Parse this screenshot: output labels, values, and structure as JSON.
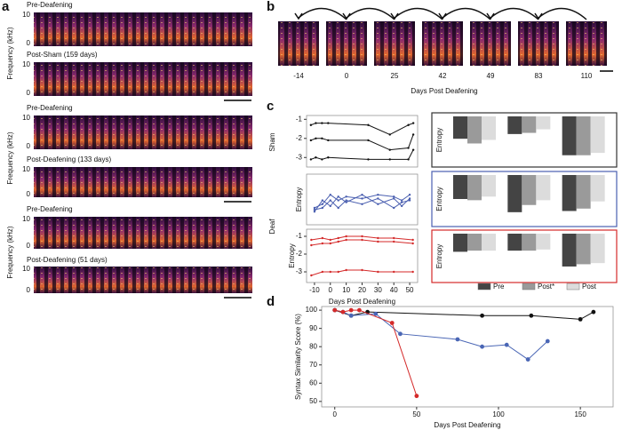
{
  "panel_labels": [
    "a",
    "b",
    "c",
    "d"
  ],
  "panel_a": {
    "ylabel": "Frequency (kHz)",
    "yticks": [
      0,
      10
    ],
    "rows": [
      {
        "title": "Pre-Deafening",
        "color": "#111111"
      },
      {
        "title": "Post-Sham (159 days)",
        "color": "#111111"
      },
      {
        "title": "Pre-Deafening",
        "color": "#4a5fb0"
      },
      {
        "title": "Post-Deafening (133 days)",
        "color": "#4a5fb0"
      },
      {
        "title": "Pre-Deafening",
        "color": "#d42a2a"
      },
      {
        "title": "Post-Deafening (51 days)",
        "color": "#d42a2a"
      }
    ]
  },
  "panel_b": {
    "days": [
      -14,
      0,
      25,
      42,
      49,
      83,
      110
    ],
    "xlabel": "Days Post Deafening"
  },
  "panel_c": {
    "row_labels": [
      "Sham",
      "Deaf"
    ],
    "legend": [
      {
        "name": "Pre",
        "color": "#444444"
      },
      {
        "name": "Post*",
        "color": "#9a9a9a"
      },
      {
        "name": "Post",
        "color": "#dcdcdc"
      }
    ]
  },
  "chart_data": [
    {
      "type": "line",
      "xlim": [
        -15,
        165
      ],
      "ylim": [
        -3.5,
        -0.8
      ],
      "yticks": [
        -1,
        -2,
        -3
      ],
      "x": [
        -8,
        0,
        10,
        20,
        85,
        120,
        150,
        158
      ],
      "series": [
        {
          "color": "#111111",
          "values": [
            -1.3,
            -1.2,
            -1.2,
            -1.2,
            -1.3,
            -1.8,
            -1.3,
            -1.2
          ]
        },
        {
          "color": "#111111",
          "values": [
            -2.1,
            -2.0,
            -2.0,
            -2.1,
            -2.1,
            -2.6,
            -2.5,
            -1.8
          ]
        },
        {
          "color": "#111111",
          "values": [
            -3.1,
            -3.0,
            -3.1,
            -3.0,
            -3.1,
            -3.1,
            -3.1,
            -2.6
          ]
        }
      ]
    },
    {
      "type": "line",
      "ylabel": "Entropy",
      "xlim": [
        -15,
        55
      ],
      "ylim": [
        -3.5,
        -0.8
      ],
      "x": [
        -10,
        -5,
        0,
        5,
        10,
        20,
        30,
        40,
        45,
        50
      ],
      "series": [
        {
          "color": "#4a5fb0",
          "values": [
            -2.6,
            -2.4,
            -1.9,
            -2.2,
            -2.0,
            -2.1,
            -1.9,
            -2.0,
            -2.2,
            -1.9
          ]
        },
        {
          "color": "#4a5fb0",
          "values": [
            -2.8,
            -2.2,
            -2.5,
            -2.0,
            -2.3,
            -1.9,
            -2.4,
            -2.1,
            -2.5,
            -2.1
          ]
        },
        {
          "color": "#4a5fb0",
          "values": [
            -2.7,
            -2.6,
            -2.2,
            -2.6,
            -2.2,
            -2.4,
            -2.1,
            -2.6,
            -2.3,
            -2.2
          ]
        }
      ]
    },
    {
      "type": "line",
      "ylabel": "Entropy",
      "xlabel": "Days Post Deafening",
      "xlim": [
        -15,
        55
      ],
      "ylim": [
        -3.6,
        -0.6
      ],
      "yticks": [
        -1,
        -2,
        -3
      ],
      "xticks": [
        -10,
        0,
        10,
        20,
        30,
        40,
        50
      ],
      "x": [
        -12,
        -5,
        0,
        5,
        10,
        20,
        30,
        40,
        52
      ],
      "series": [
        {
          "color": "#d42a2a",
          "values": [
            -1.2,
            -1.1,
            -1.2,
            -1.1,
            -1.0,
            -1.0,
            -1.1,
            -1.1,
            -1.2
          ]
        },
        {
          "color": "#d42a2a",
          "values": [
            -1.5,
            -1.4,
            -1.4,
            -1.3,
            -1.2,
            -1.2,
            -1.3,
            -1.3,
            -1.4
          ]
        },
        {
          "color": "#d42a2a",
          "values": [
            -3.2,
            -3.0,
            -3.0,
            -3.0,
            -2.9,
            -2.9,
            -3.0,
            -3.0,
            -3.0
          ]
        }
      ]
    },
    {
      "type": "bar",
      "ylabel": "Entropy",
      "frame_color": "#333333",
      "ylim": [
        -4,
        0
      ],
      "categories": [
        null,
        null,
        null
      ],
      "series": [
        {
          "color": "#444444",
          "values": [
            -1.9,
            -1.5,
            -3.3
          ]
        },
        {
          "color": "#9a9a9a",
          "values": [
            -2.3,
            -1.4,
            -3.3
          ]
        },
        {
          "color": "#dcdcdc",
          "values": [
            -2.0,
            -1.1,
            -3.1
          ]
        }
      ]
    },
    {
      "type": "bar",
      "ylabel": "Entropy",
      "frame_color": "#4a5fb0",
      "ylim": [
        -4,
        0
      ],
      "categories": [
        null,
        null,
        null
      ],
      "series": [
        {
          "color": "#444444",
          "values": [
            -2.0,
            -3.1,
            -3.0
          ]
        },
        {
          "color": "#9a9a9a",
          "values": [
            -2.1,
            -2.5,
            -2.8
          ]
        },
        {
          "color": "#dcdcdc",
          "values": [
            -1.8,
            -2.1,
            -2.2
          ]
        }
      ]
    },
    {
      "type": "bar",
      "ylabel": "Entropy",
      "frame_color": "#d42a2a",
      "ylim": [
        -4,
        0
      ],
      "categories": [
        null,
        null,
        null
      ],
      "series": [
        {
          "color": "#444444",
          "values": [
            -1.6,
            -1.5,
            -2.9
          ]
        },
        {
          "color": "#9a9a9a",
          "values": [
            -1.5,
            -1.5,
            -2.7
          ]
        },
        {
          "color": "#dcdcdc",
          "values": [
            -1.5,
            -1.4,
            -2.6
          ]
        }
      ]
    },
    {
      "type": "line",
      "ylabel": "Syntax Similarity Score (%)",
      "xlabel": "Days Post Deafening",
      "xlim": [
        -8,
        170
      ],
      "ylim": [
        47,
        102
      ],
      "xticks": [
        0,
        50,
        100,
        150
      ],
      "yticks": [
        50,
        60,
        70,
        80,
        90,
        100
      ],
      "markers": true,
      "series": [
        {
          "color": "#111111",
          "x": [
            0,
            10,
            20,
            90,
            120,
            150,
            158
          ],
          "values": [
            100,
            97,
            99,
            97,
            97,
            95,
            99
          ]
        },
        {
          "color": "#4a66b5",
          "x": [
            0,
            5,
            10,
            25,
            40,
            75,
            90,
            105,
            118,
            130
          ],
          "values": [
            100,
            99,
            97,
            98,
            87,
            84,
            80,
            81,
            73,
            83
          ]
        },
        {
          "color": "#d42a2a",
          "x": [
            0,
            5,
            10,
            15,
            35,
            50
          ],
          "values": [
            100,
            99,
            100,
            100,
            93,
            53
          ]
        }
      ]
    }
  ]
}
